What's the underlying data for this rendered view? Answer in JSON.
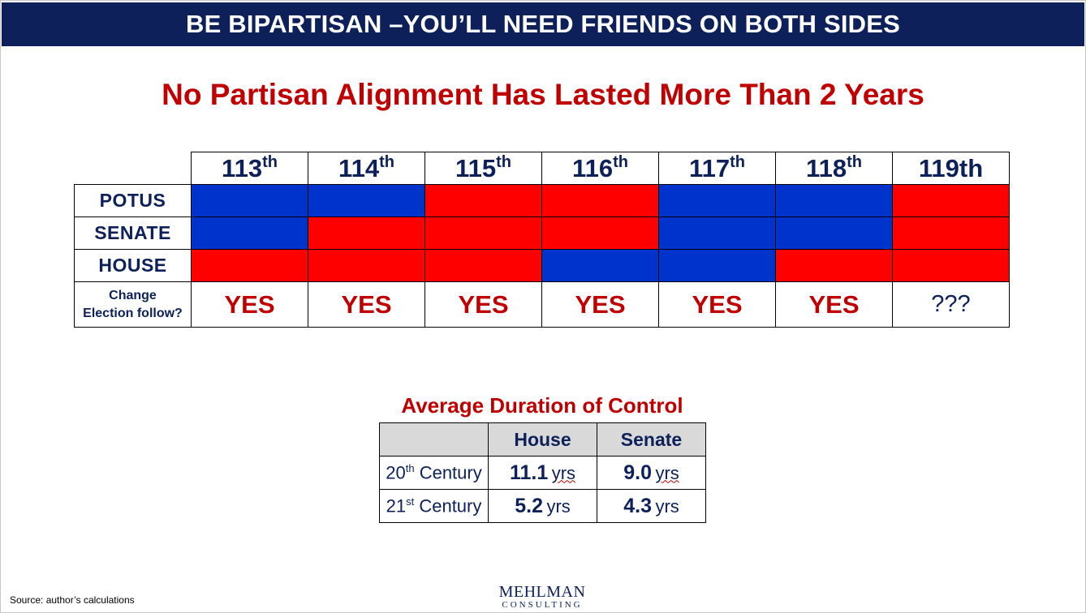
{
  "header": {
    "title": "BE BIPARTISAN –YOU’LL NEED FRIENDS ON BOTH SIDES"
  },
  "subtitle": "No Partisan Alignment Has Lasted More Than 2 Years",
  "colors": {
    "republican": "#ff0000",
    "democrat": "#0033cc",
    "navy": "#0d2059",
    "accent_red": "#c00000"
  },
  "alignment_table": {
    "congresses": [
      {
        "num": "113",
        "suffix": "th"
      },
      {
        "num": "114",
        "suffix": "th"
      },
      {
        "num": "115",
        "suffix": "th"
      },
      {
        "num": "116",
        "suffix": "th"
      },
      {
        "num": "117",
        "suffix": "th"
      },
      {
        "num": "118",
        "suffix": "th"
      },
      {
        "num": "119th",
        "suffix": ""
      }
    ],
    "rows": [
      {
        "label": "POTUS",
        "control": [
          "D",
          "D",
          "R",
          "R",
          "D",
          "D",
          "R"
        ]
      },
      {
        "label": "SENATE",
        "control": [
          "D",
          "R",
          "R",
          "R",
          "D",
          "D",
          "R"
        ]
      },
      {
        "label": "HOUSE",
        "control": [
          "R",
          "R",
          "R",
          "D",
          "D",
          "R",
          "R"
        ]
      }
    ],
    "follow_label_line1": "Change",
    "follow_label_line2": "Election follow?",
    "follow_values": [
      "YES",
      "YES",
      "YES",
      "YES",
      "YES",
      "YES",
      "???"
    ]
  },
  "avg_duration": {
    "title": "Average Duration of Control",
    "headers": [
      "",
      "House",
      "Senate"
    ],
    "rows": [
      {
        "century_num": "20",
        "century_sup": "th",
        "century_word": " Century",
        "house_value": "11.1",
        "house_unit": "yrs",
        "senate_value": "9.0",
        "senate_unit": "yrs"
      },
      {
        "century_num": "21",
        "century_sup": "st",
        "century_word": " Century",
        "house_value": "5.2",
        "house_unit": "yrs",
        "senate_value": "4.3",
        "senate_unit": "yrs"
      }
    ]
  },
  "footer": {
    "source": "Source: author’s calculations",
    "logo_line1": "MEHLMAN",
    "logo_line2": "CONSULTING"
  }
}
